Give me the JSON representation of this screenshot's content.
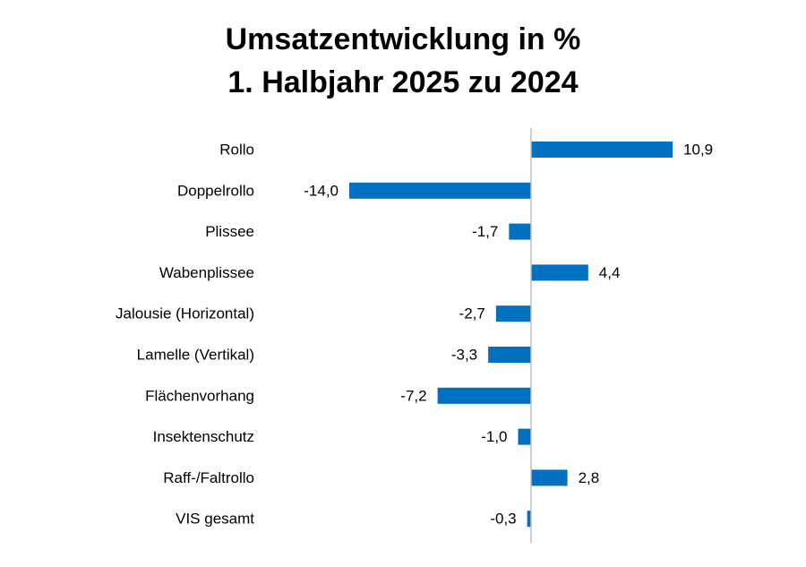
{
  "chart_data": {
    "type": "barh",
    "title": "Umsatzentwicklung in %",
    "subtitle": "1. Halbjahr 2025 zu 2024",
    "categories": [
      "Rollo",
      "Doppelrollo",
      "Plissee",
      "Wabenplissee",
      "Jalousie (Horizontal)",
      "Lamelle (Vertikal)",
      "Flächenvorhang",
      "Insektenschutz",
      "Raff-/Faltrollo",
      "VIS gesamt"
    ],
    "values": [
      10.9,
      -14.0,
      -1.7,
      4.4,
      -2.7,
      -3.3,
      -7.2,
      -1.0,
      2.8,
      -0.3
    ],
    "value_labels": [
      "10,9",
      "-14,0",
      "-1,7",
      "4,4",
      "-2,7",
      "-3,3",
      "-7,2",
      "-1,0",
      "2,8",
      "-0,3"
    ],
    "color": "#0070c0",
    "xlim": [
      -14,
      11
    ]
  }
}
